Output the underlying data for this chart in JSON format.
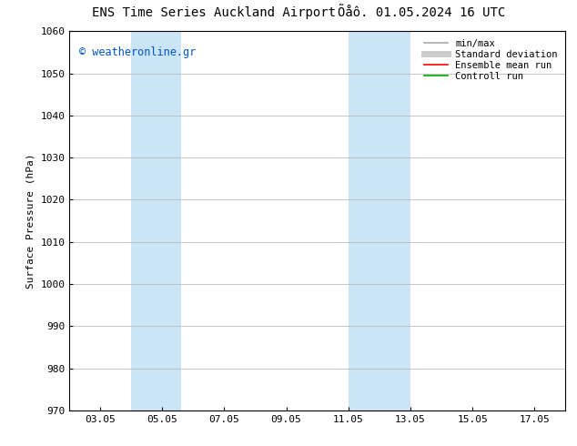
{
  "title_left": "ENS Time Series Auckland Airport",
  "title_right": "Õåô. 01.05.2024 16 UTC",
  "ylabel": "Surface Pressure (hPa)",
  "ylim": [
    970,
    1060
  ],
  "yticks": [
    970,
    980,
    990,
    1000,
    1010,
    1020,
    1030,
    1040,
    1050,
    1060
  ],
  "xlim": [
    2.0,
    18.0
  ],
  "xtick_labels": [
    "03.05",
    "05.05",
    "07.05",
    "09.05",
    "11.05",
    "13.05",
    "15.05",
    "17.05"
  ],
  "xtick_positions": [
    3,
    5,
    7,
    9,
    11,
    13,
    15,
    17
  ],
  "shaded_bands": [
    {
      "x_start": 4.0,
      "x_end": 5.6,
      "color": "#cce5f6"
    },
    {
      "x_start": 11.0,
      "x_end": 13.0,
      "color": "#cce5f6"
    }
  ],
  "watermark": "© weatheronline.gr",
  "watermark_color": "#0055cc",
  "background_color": "#ffffff",
  "plot_background": "#ffffff",
  "legend_items": [
    {
      "label": "min/max",
      "color": "#aaaaaa",
      "lw": 1.2
    },
    {
      "label": "Standard deviation",
      "color": "#cccccc",
      "lw": 5
    },
    {
      "label": "Ensemble mean run",
      "color": "#ff0000",
      "lw": 1.2
    },
    {
      "label": "Controll run",
      "color": "#00aa00",
      "lw": 1.2
    }
  ],
  "grid_color": "#bbbbbb",
  "font_size_title": 10,
  "font_size_axis": 8,
  "font_size_ticks": 8,
  "font_size_legend": 7.5,
  "font_size_watermark": 8.5
}
